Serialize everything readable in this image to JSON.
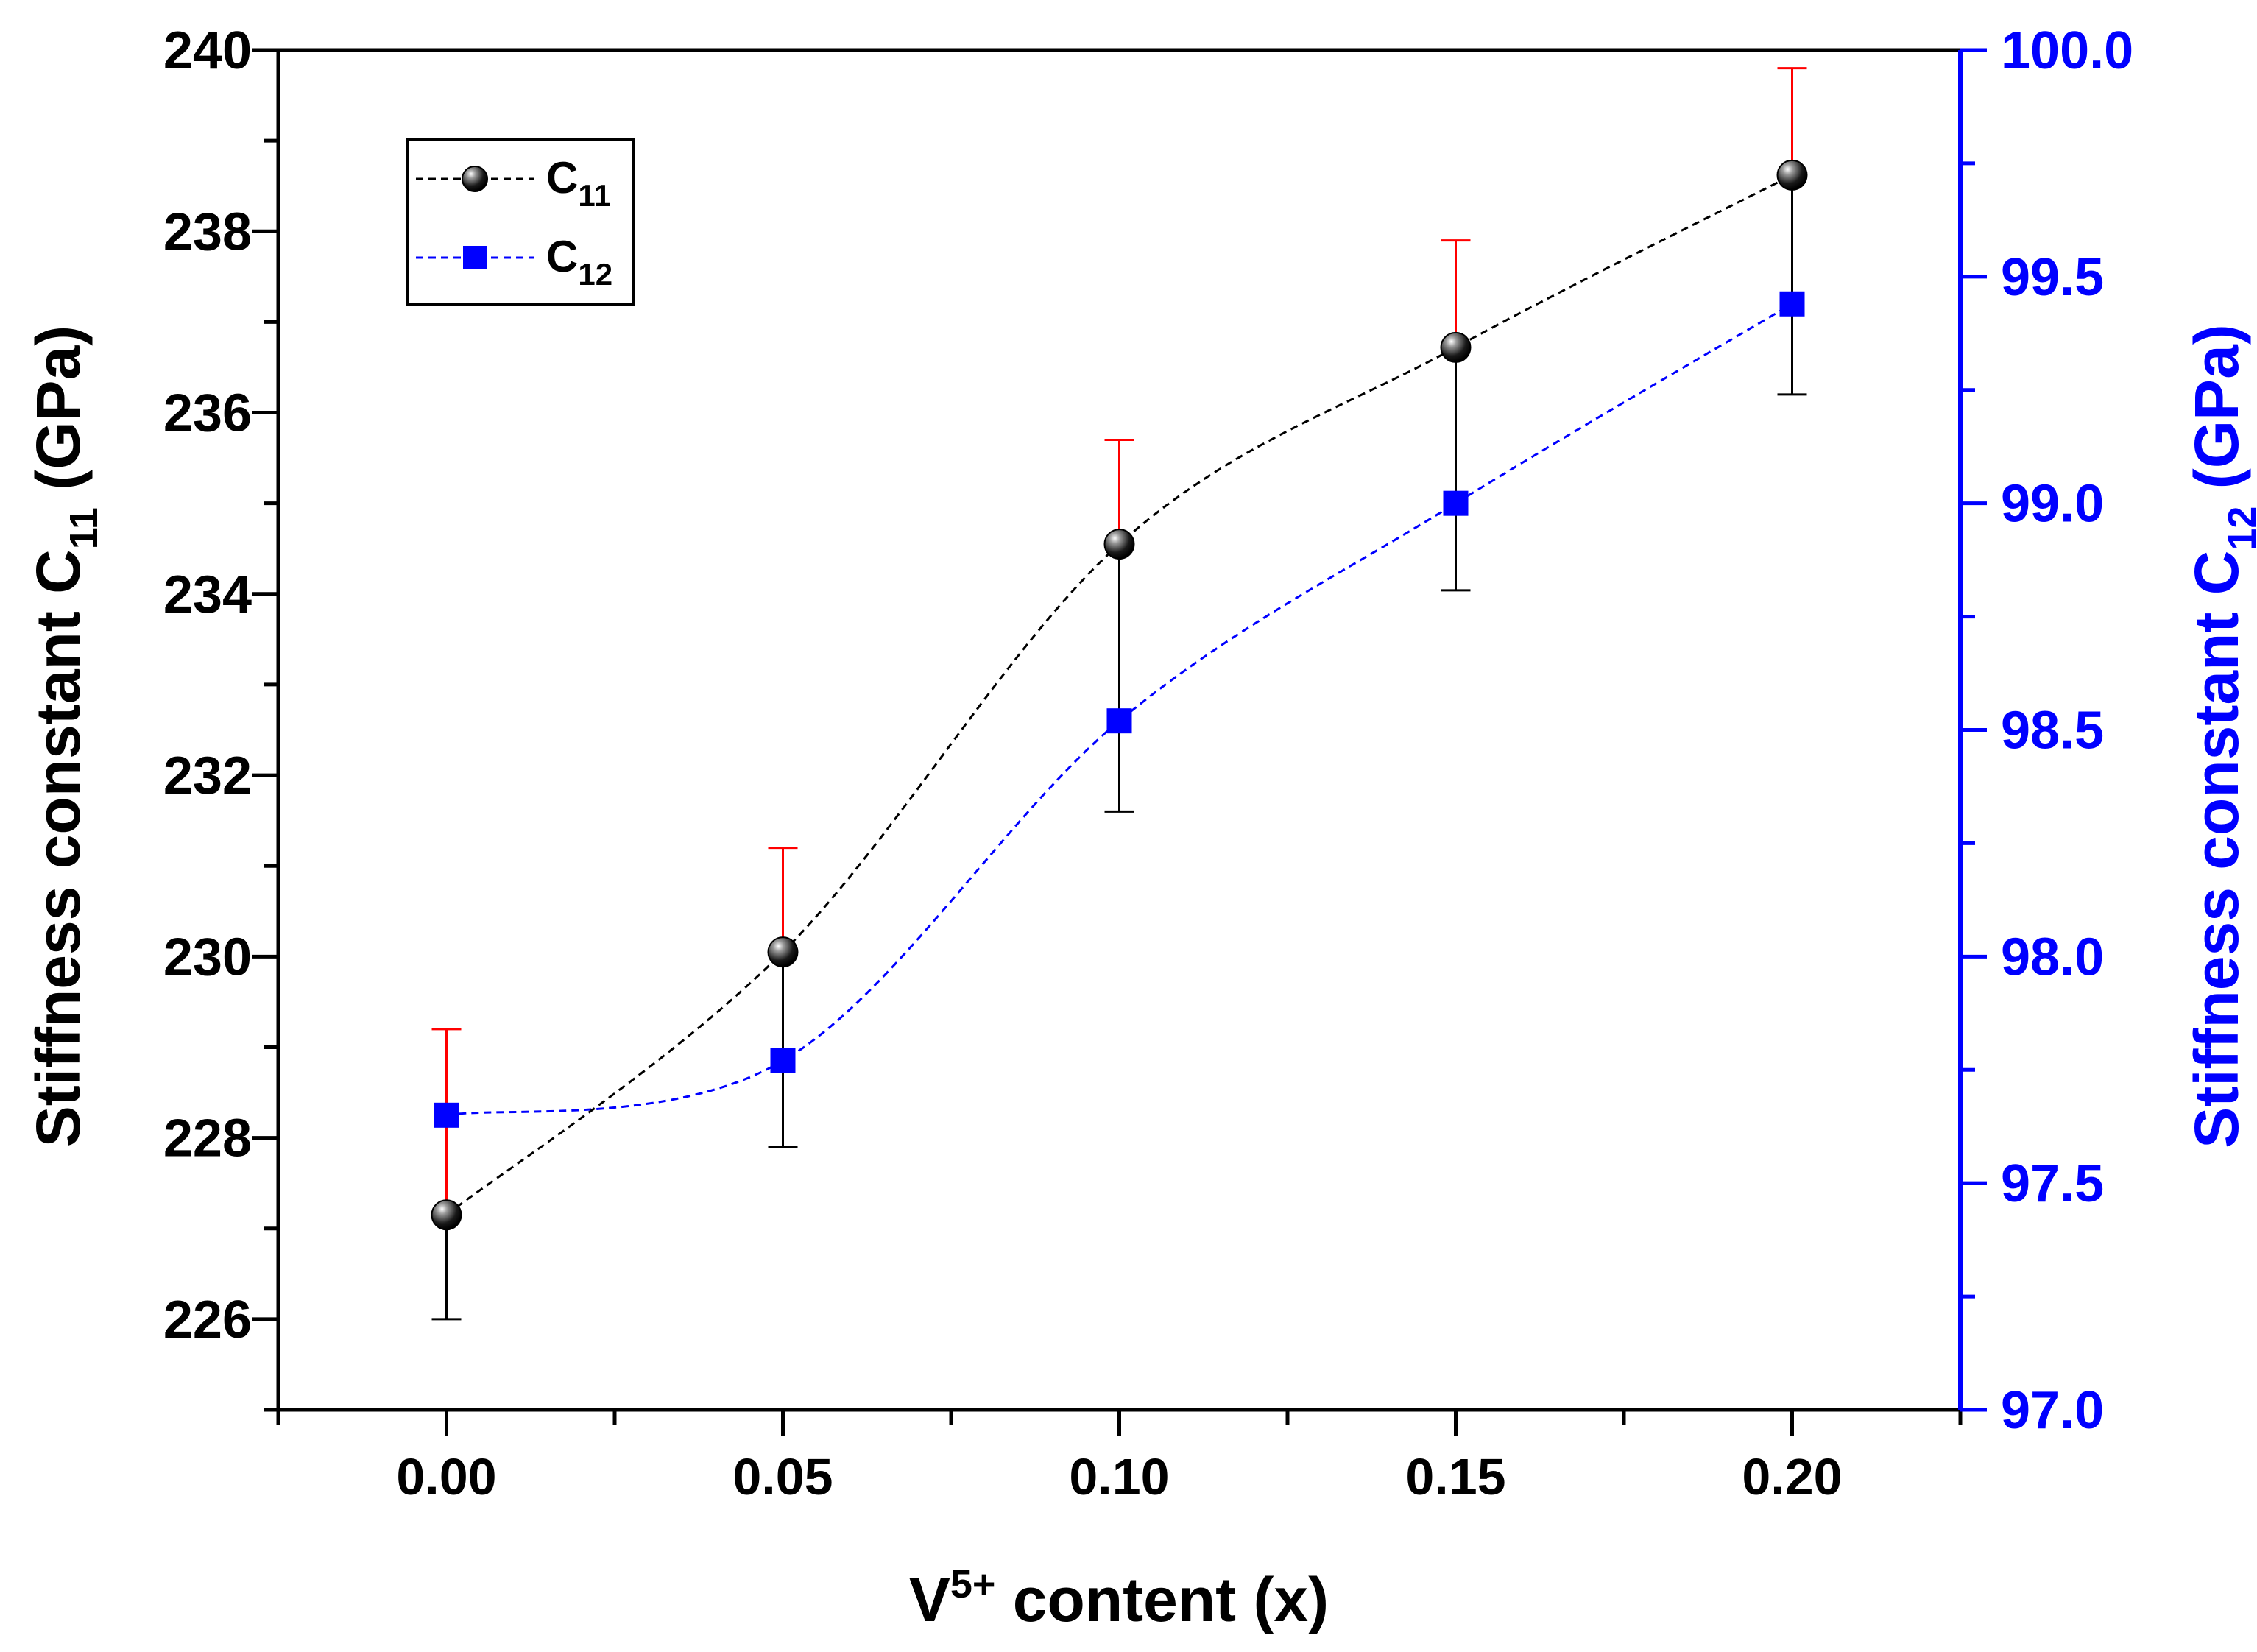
{
  "chart_data": {
    "type": "line",
    "x": [
      0.0,
      0.05,
      0.1,
      0.15,
      0.2
    ],
    "series": [
      {
        "name": "C",
        "subscript": "11",
        "axis": "left",
        "values": [
          227.15,
          230.05,
          234.55,
          236.72,
          238.62
        ],
        "error_up": [
          2.05,
          1.15,
          1.15,
          1.18,
          1.18
        ],
        "error_down": [
          1.15,
          2.15,
          2.95,
          2.68,
          2.42
        ],
        "marker": "sphere",
        "color": "#000000",
        "line_style": "dashed"
      },
      {
        "name": "C",
        "subscript": "12",
        "axis": "right",
        "values": [
          97.65,
          97.77,
          98.52,
          99.0,
          99.44
        ],
        "marker": "square",
        "color": "#0000ff",
        "line_style": "dashed"
      }
    ],
    "xlabel": {
      "main": "V",
      "sup": "5+",
      "rest": " content (x)"
    },
    "ylabel_left": {
      "main": "Stiffness constant C",
      "sub": "11",
      "rest": " (GPa)"
    },
    "ylabel_right": {
      "main": "Stiffness constant C",
      "sub": "12",
      "rest": " (GPa)"
    },
    "xlim": [
      -0.025,
      0.225
    ],
    "ylim_left": [
      225,
      240
    ],
    "ylim_right": [
      97.0,
      100.0
    ],
    "xticks": [
      "0.00",
      "0.05",
      "0.10",
      "0.15",
      "0.20"
    ],
    "yticks_left": [
      "226",
      "228",
      "230",
      "232",
      "234",
      "236",
      "238",
      "240"
    ],
    "yticks_right": [
      "97.0",
      "97.5",
      "98.0",
      "98.5",
      "99.0",
      "99.5",
      "100.0"
    ],
    "legend_position": "top-left",
    "colors": {
      "axis_left": "#000000",
      "axis_right": "#0000ff",
      "error_upper": "#ff0000",
      "error_lower": "#000000"
    }
  }
}
